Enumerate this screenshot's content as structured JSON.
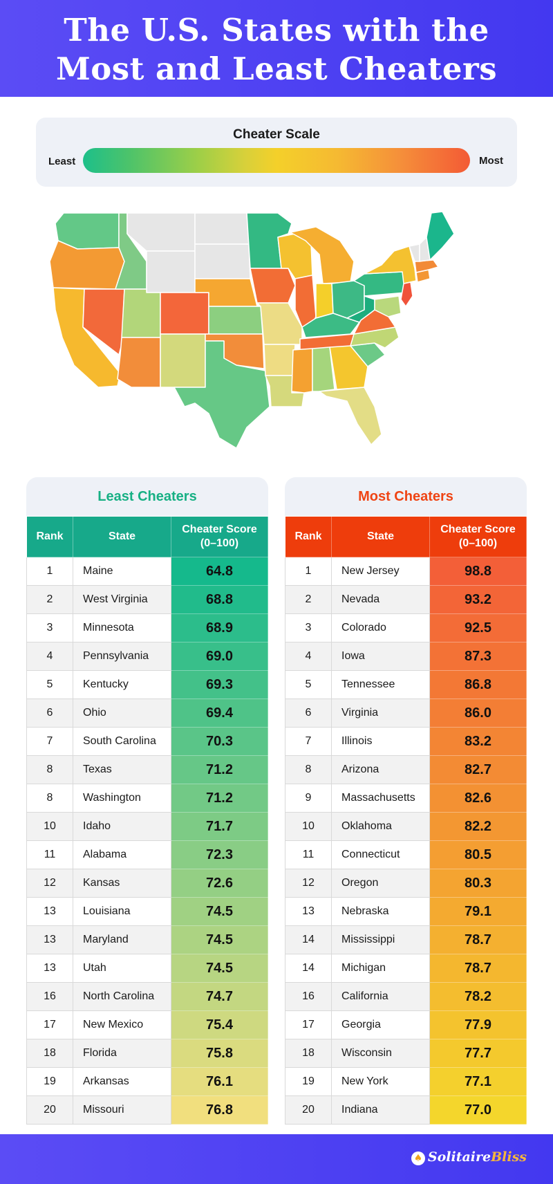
{
  "title": {
    "line1": "The U.S. States with the",
    "line2": "Most and Least Cheaters"
  },
  "scale": {
    "title": "Cheater Scale",
    "least": "Least",
    "most": "Most",
    "colors": [
      "#1dbf8a",
      "#f4d02a",
      "#f35a35"
    ]
  },
  "least": {
    "heading": "Least Cheaters",
    "columns": {
      "rank": "Rank",
      "state": "State",
      "score_line1": "Cheater Score",
      "score_line2": "(0–100)"
    },
    "color": "#17a98a",
    "rows": [
      {
        "rank": "1",
        "state": "Maine",
        "score": "64.8"
      },
      {
        "rank": "2",
        "state": "West Virginia",
        "score": "68.8"
      },
      {
        "rank": "3",
        "state": "Minnesota",
        "score": "68.9"
      },
      {
        "rank": "4",
        "state": "Pennsylvania",
        "score": "69.0"
      },
      {
        "rank": "5",
        "state": "Kentucky",
        "score": "69.3"
      },
      {
        "rank": "6",
        "state": "Ohio",
        "score": "69.4"
      },
      {
        "rank": "7",
        "state": "South Carolina",
        "score": "70.3"
      },
      {
        "rank": "8",
        "state": "Texas",
        "score": "71.2"
      },
      {
        "rank": "8",
        "state": "Washington",
        "score": "71.2"
      },
      {
        "rank": "10",
        "state": "Idaho",
        "score": "71.7"
      },
      {
        "rank": "11",
        "state": "Alabama",
        "score": "72.3"
      },
      {
        "rank": "12",
        "state": "Kansas",
        "score": "72.6"
      },
      {
        "rank": "13",
        "state": "Louisiana",
        "score": "74.5"
      },
      {
        "rank": "13",
        "state": "Maryland",
        "score": "74.5"
      },
      {
        "rank": "13",
        "state": "Utah",
        "score": "74.5"
      },
      {
        "rank": "16",
        "state": "North Carolina",
        "score": "74.7"
      },
      {
        "rank": "17",
        "state": "New Mexico",
        "score": "75.4"
      },
      {
        "rank": "18",
        "state": "Florida",
        "score": "75.8"
      },
      {
        "rank": "19",
        "state": "Arkansas",
        "score": "76.1"
      },
      {
        "rank": "20",
        "state": "Missouri",
        "score": "76.8"
      }
    ]
  },
  "most": {
    "heading": "Most Cheaters",
    "columns": {
      "rank": "Rank",
      "state": "State",
      "score_line1": "Cheater Score",
      "score_line2": "(0–100)"
    },
    "color": "#ee3d0c",
    "rows": [
      {
        "rank": "1",
        "state": "New Jersey",
        "score": "98.8"
      },
      {
        "rank": "2",
        "state": "Nevada",
        "score": "93.2"
      },
      {
        "rank": "3",
        "state": "Colorado",
        "score": "92.5"
      },
      {
        "rank": "4",
        "state": "Iowa",
        "score": "87.3"
      },
      {
        "rank": "5",
        "state": "Tennessee",
        "score": "86.8"
      },
      {
        "rank": "6",
        "state": "Virginia",
        "score": "86.0"
      },
      {
        "rank": "7",
        "state": "Illinois",
        "score": "83.2"
      },
      {
        "rank": "8",
        "state": "Arizona",
        "score": "82.7"
      },
      {
        "rank": "9",
        "state": "Massachusetts",
        "score": "82.6"
      },
      {
        "rank": "10",
        "state": "Oklahoma",
        "score": "82.2"
      },
      {
        "rank": "11",
        "state": "Connecticut",
        "score": "80.5"
      },
      {
        "rank": "12",
        "state": "Oregon",
        "score": "80.3"
      },
      {
        "rank": "13",
        "state": "Nebraska",
        "score": "79.1"
      },
      {
        "rank": "14",
        "state": "Mississippi",
        "score": "78.7"
      },
      {
        "rank": "14",
        "state": "Michigan",
        "score": "78.7"
      },
      {
        "rank": "16",
        "state": "California",
        "score": "78.2"
      },
      {
        "rank": "17",
        "state": "Georgia",
        "score": "77.9"
      },
      {
        "rank": "18",
        "state": "Wisconsin",
        "score": "77.7"
      },
      {
        "rank": "19",
        "state": "New York",
        "score": "77.1"
      },
      {
        "rank": "20",
        "state": "Indiana",
        "score": "77.0"
      }
    ]
  },
  "brand": {
    "name_part1": "Solitaire",
    "name_part2": "Bliss",
    "icon": "cards-icon"
  }
}
